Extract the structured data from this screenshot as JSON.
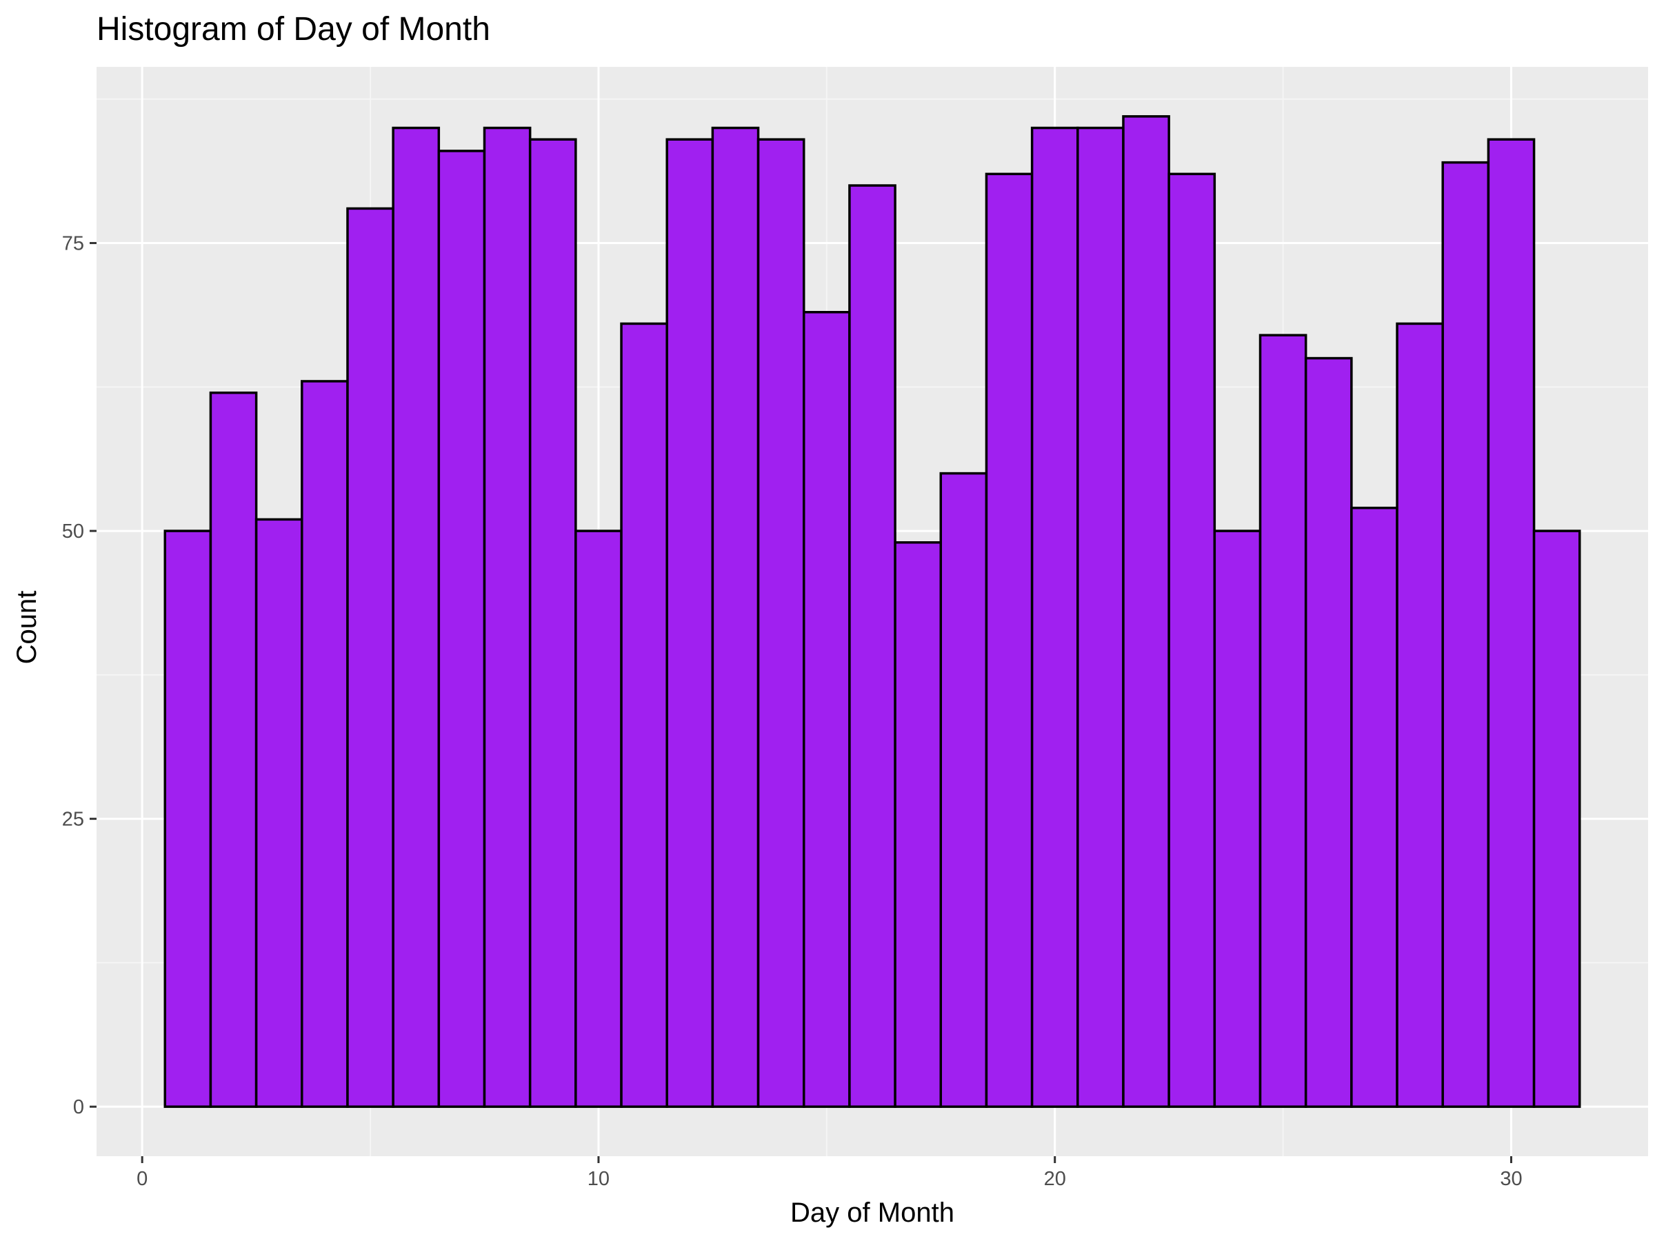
{
  "chart_data": {
    "type": "bar",
    "subtype": "histogram",
    "title": "Histogram of Day of Month",
    "xlabel": "Day of Month",
    "ylabel": "Count",
    "x": [
      1,
      2,
      3,
      4,
      5,
      6,
      7,
      8,
      9,
      10,
      11,
      12,
      13,
      14,
      15,
      16,
      17,
      18,
      19,
      20,
      21,
      22,
      23,
      24,
      25,
      26,
      27,
      28,
      29,
      30,
      31
    ],
    "values": [
      50,
      62,
      51,
      63,
      78,
      85,
      83,
      85,
      84,
      50,
      68,
      84,
      85,
      84,
      69,
      80,
      49,
      55,
      81,
      85,
      85,
      86,
      81,
      50,
      67,
      65,
      52,
      68,
      82,
      84,
      50
    ],
    "bin_width": 1,
    "xlim": [
      -1,
      33
    ],
    "ylim": [
      -4.3,
      90.3
    ],
    "x_ticks": [
      0,
      10,
      20,
      30
    ],
    "x_tick_labels": [
      "0",
      "10",
      "20",
      "30"
    ],
    "y_ticks": [
      0,
      25,
      50,
      75
    ],
    "y_tick_labels": [
      "0",
      "25",
      "50",
      "75"
    ],
    "grid": true,
    "legend": "none",
    "colors": {
      "bar_fill": "#A020F0",
      "bar_outline": "#000000",
      "panel_background": "#EBEBEB",
      "grid_major": "#FFFFFF",
      "grid_minor": "#F5F5F5",
      "tick_text": "#4D4D4D",
      "tick_mark": "#333333"
    }
  }
}
